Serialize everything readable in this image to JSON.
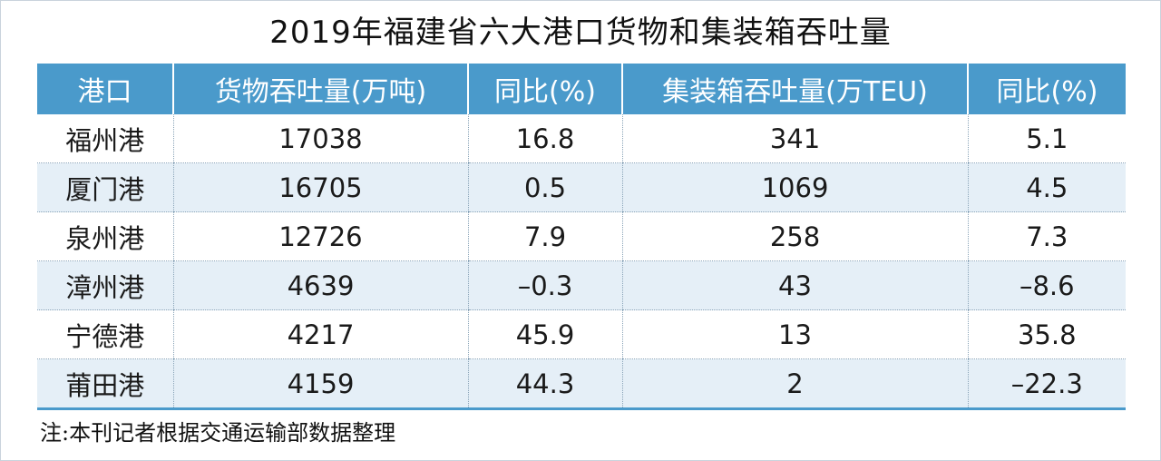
{
  "title": "2019年福建省六大港口货物和集装箱吞吐量",
  "table": {
    "headers": [
      "港口",
      "货物吞吐量(万吨)",
      "同比(%)",
      "集装箱吞吐量(万TEU)",
      "同比(%)"
    ],
    "rows": [
      [
        "福州港",
        "17038",
        "16.8",
        "341",
        "5.1"
      ],
      [
        "厦门港",
        "16705",
        "0.5",
        "1069",
        "4.5"
      ],
      [
        "泉州港",
        "12726",
        "7.9",
        "258",
        "7.3"
      ],
      [
        "漳州港",
        "4639",
        "–0.3",
        "43",
        "–8.6"
      ],
      [
        "宁德港",
        "4217",
        "45.9",
        "13",
        "35.8"
      ],
      [
        "莆田港",
        "4159",
        "44.3",
        "2",
        "–22.3"
      ]
    ]
  },
  "note": "注:本刊记者根据交通运输部数据整理",
  "colors": {
    "header_bg": "#4a9acb",
    "stripe_bg": "#e5eff7"
  }
}
